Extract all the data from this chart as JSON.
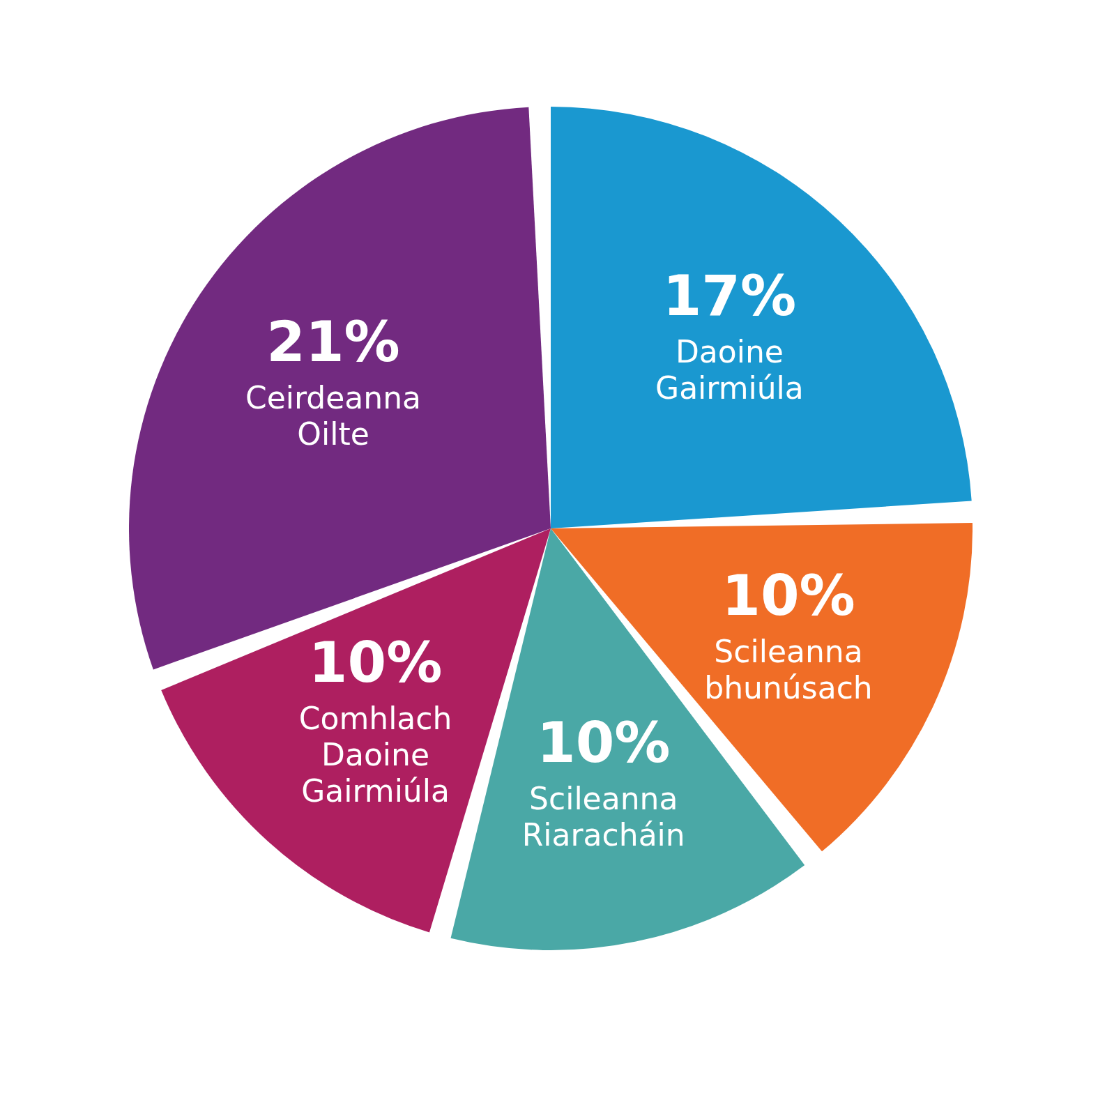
{
  "chart_data": {
    "type": "pie",
    "categories": [
      "Daoine Gairmiúla",
      "Scileanna bhunúsach",
      "Scileanna Riaracháin",
      "Comhlach Daoine Gairmiúla",
      "Ceirdeanna Oilte"
    ],
    "values": [
      17,
      10,
      10,
      10,
      21
    ],
    "value_labels": [
      "17%",
      "10%",
      "10%",
      "10%",
      "21%"
    ],
    "colors": [
      "#1a98d0",
      "#f06d26",
      "#4aa8a6",
      "#ae1f60",
      "#722a80"
    ]
  }
}
